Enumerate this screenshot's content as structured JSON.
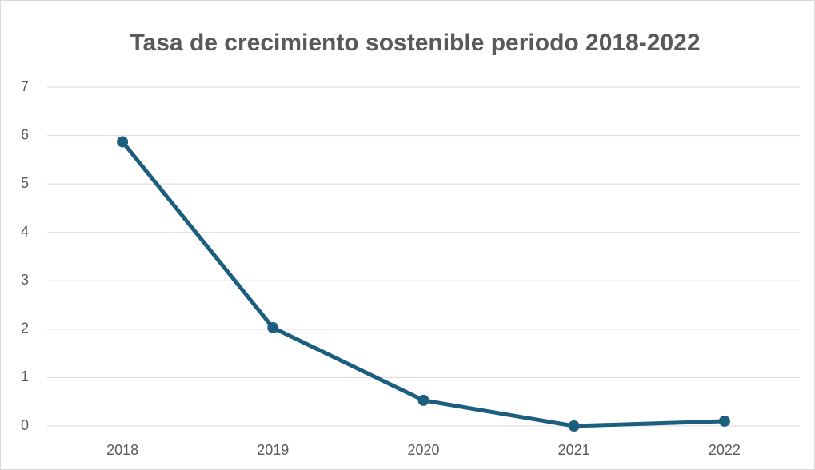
{
  "chart_data": {
    "type": "line",
    "title": "Tasa de crecimiento sostenible periodo 2018-2022",
    "categories": [
      "2018",
      "2019",
      "2020",
      "2021",
      "2022"
    ],
    "series": [
      {
        "name": "Tasa de crecimiento sostenible",
        "color": "#1b5e7e",
        "values": [
          5.87,
          2.03,
          0.53,
          0,
          0.1
        ]
      }
    ],
    "ylim": [
      0,
      7
    ],
    "yticks": [
      0,
      1,
      2,
      3,
      4,
      5,
      6,
      7
    ],
    "grid": true
  }
}
